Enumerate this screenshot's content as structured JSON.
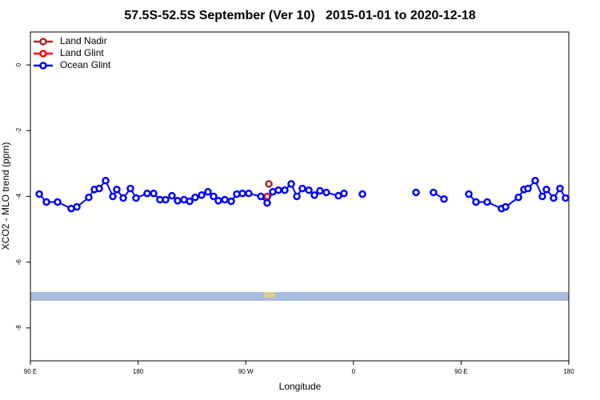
{
  "chart_data": {
    "type": "line",
    "title": "57.5S-52.5S September (Ver 10)   2015-01-01 to 2020-12-18",
    "xlabel": "Longitude",
    "ylabel": "XCO2 - MLO trend (ppm)",
    "xlim": [
      90,
      540
    ],
    "ylim": [
      -9,
      1
    ],
    "xticks": [
      {
        "value": 90,
        "label": "90 E"
      },
      180,
      {
        "value": 270,
        "label": "90 W"
      },
      {
        "value": 360,
        "label": "0"
      },
      {
        "value": 450,
        "label": "90 E"
      },
      {
        "value": 540,
        "label": "180"
      }
    ],
    "yticks": [
      0,
      -2,
      -4,
      -6,
      -8
    ],
    "legend": "top-left",
    "series": [
      {
        "name": "Land Nadir",
        "color": "#a52a2a",
        "x": [
          289.3
        ],
        "values": [
          -3.62
        ]
      },
      {
        "name": "Land Glint",
        "color": "#ff0000",
        "x": [
          288.0
        ],
        "values": [
          -4.0
        ]
      },
      {
        "name": "Ocean Glint",
        "color": "#0000ff",
        "x": [
          97.4,
          103.4,
          112.7,
          124.1,
          128.8,
          138.8,
          143.5,
          147.5,
          152.9,
          158.9,
          162.2,
          167.6,
          173.6,
          178.3,
          187.6,
          193.0,
          198.3,
          203.0,
          208.3,
          213.0,
          218.4,
          223.1,
          227.7,
          233.1,
          238.4,
          243.1,
          247.1,
          252.5,
          257.8,
          262.5,
          267.2,
          272.5,
          282.6,
          287.9,
          292.6,
          297.3,
          302.6,
          308.0,
          312.7,
          317.3,
          322.7,
          327.4,
          332.0,
          337.4,
          347.4,
          352.1,
          367.5,
          412.3,
          426.9,
          435.7,
          456.4,
          462.4,
          471.8,
          483.8,
          487.2,
          497.9,
          502.5,
          505.9,
          511.9,
          517.9,
          521.3,
          527.3,
          532.6,
          537.3
        ],
        "values": [
          -3.93,
          -4.17,
          -4.17,
          -4.37,
          -4.32,
          -4.03,
          -3.79,
          -3.76,
          -3.52,
          -4.0,
          -3.79,
          -4.05,
          -3.76,
          -4.05,
          -3.91,
          -3.91,
          -4.1,
          -4.1,
          -3.98,
          -4.13,
          -4.1,
          -4.15,
          -4.03,
          -3.96,
          -3.86,
          -4.0,
          -4.13,
          -4.1,
          -4.15,
          -3.93,
          -3.91,
          -3.91,
          -4.0,
          -4.2,
          -3.86,
          -3.81,
          -3.81,
          -3.62,
          -4.0,
          -3.76,
          -3.81,
          -3.96,
          -3.83,
          -3.88,
          -3.98,
          -3.91,
          -3.93,
          -3.88,
          -3.88,
          -4.08,
          -3.93,
          -4.17,
          -4.17,
          -4.37,
          -4.32,
          -4.03,
          -3.79,
          -3.76,
          -3.52,
          -4.0,
          -3.79,
          -4.05,
          -3.76,
          -4.05
        ]
      }
    ]
  }
}
